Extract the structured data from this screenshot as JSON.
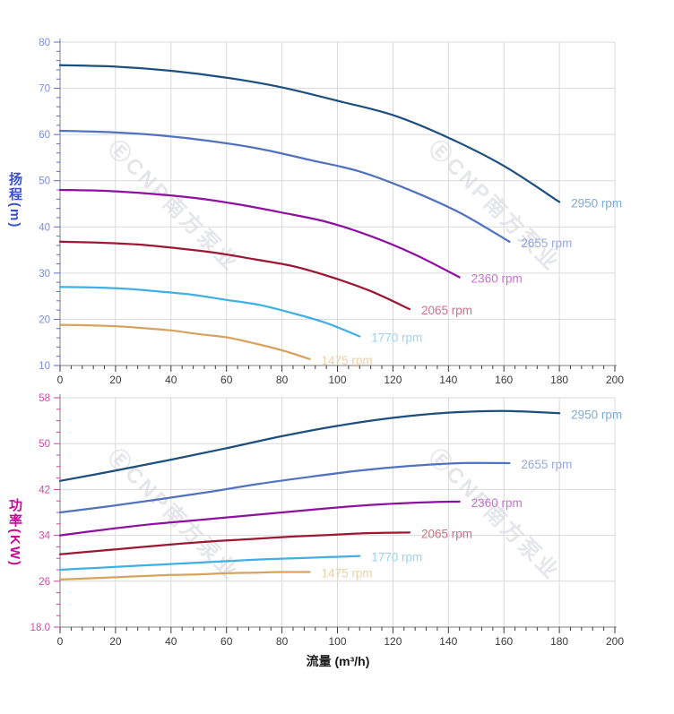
{
  "watermark": {
    "text": "ⒺCNP南方泵业",
    "color": "#d5d7db"
  },
  "chart_data": [
    {
      "id": "head-vs-flow",
      "type": "line",
      "title": "",
      "ylabel": "扬程",
      "ylabel_unit": "(m)",
      "xlabel": "",
      "xlim": [
        0,
        200
      ],
      "ylim": [
        10,
        80
      ],
      "x_ticks": [
        "0",
        "20",
        "40",
        "60",
        "80",
        "100",
        "120",
        "140",
        "160",
        "180",
        "200"
      ],
      "x_minor_step": 4,
      "y_ticks": [
        "10",
        "20",
        "30",
        "40",
        "50",
        "60",
        "70",
        "80"
      ],
      "y_major_step": 10,
      "y_minor_step": 2,
      "grid": true,
      "legend_position": "at-line-end",
      "axis_title_color": "#3a51d4",
      "axis_tick_label_color": "#7e8bd8",
      "axis_tick_color": "#5e6ac8",
      "series": [
        {
          "name": "2950 rpm",
          "color": "#1d4f7f",
          "label_color": "#82aad4",
          "points": [
            [
              0,
              75
            ],
            [
              20,
              74.7
            ],
            [
              40,
              73.8
            ],
            [
              60,
              72.3
            ],
            [
              80,
              70.2
            ],
            [
              100,
              67.3
            ],
            [
              120,
              64.2
            ],
            [
              140,
              59.3
            ],
            [
              160,
              53.2
            ],
            [
              180,
              45.4
            ]
          ]
        },
        {
          "name": "2655 rpm",
          "color": "#5272bf",
          "label_color": "#98a9e0",
          "points": [
            [
              0,
              60.8
            ],
            [
              18,
              60.5
            ],
            [
              36,
              59.8
            ],
            [
              54,
              58.6
            ],
            [
              72,
              56.9
            ],
            [
              90,
              54.5
            ],
            [
              108,
              52
            ],
            [
              126,
              48
            ],
            [
              144,
              43.1
            ],
            [
              162,
              36.8
            ]
          ]
        },
        {
          "name": "2360 rpm",
          "color": "#8f109f",
          "label_color": "#c573cf",
          "points": [
            [
              0,
              48
            ],
            [
              16,
              47.8
            ],
            [
              32,
              47.2
            ],
            [
              48,
              46.3
            ],
            [
              64,
              44.9
            ],
            [
              80,
              43.1
            ],
            [
              96,
              41.1
            ],
            [
              112,
              38
            ],
            [
              128,
              34
            ],
            [
              144,
              29.1
            ]
          ]
        },
        {
          "name": "2065 rpm",
          "color": "#9c1834",
          "label_color": "#ce7088",
          "points": [
            [
              0,
              36.8
            ],
            [
              14,
              36.6
            ],
            [
              28,
              36.2
            ],
            [
              42,
              35.4
            ],
            [
              56,
              34.4
            ],
            [
              70,
              33
            ],
            [
              84,
              31.5
            ],
            [
              98,
              29.1
            ],
            [
              112,
              26.1
            ],
            [
              126,
              22.2
            ]
          ]
        },
        {
          "name": "1770 rpm",
          "color": "#3fafe4",
          "label_color": "#9ed2f0",
          "points": [
            [
              0,
              27
            ],
            [
              12,
              26.9
            ],
            [
              24,
              26.6
            ],
            [
              36,
              26
            ],
            [
              48,
              25.3
            ],
            [
              60,
              24.2
            ],
            [
              72,
              23.1
            ],
            [
              84,
              21.3
            ],
            [
              96,
              19.2
            ],
            [
              108,
              16.3
            ]
          ]
        },
        {
          "name": "1475 rpm",
          "color": "#d8a260",
          "label_color": "#ecd0a4",
          "points": [
            [
              0,
              18.8
            ],
            [
              10,
              18.7
            ],
            [
              20,
              18.5
            ],
            [
              30,
              18.1
            ],
            [
              40,
              17.6
            ],
            [
              50,
              16.8
            ],
            [
              60,
              16.1
            ],
            [
              70,
              14.8
            ],
            [
              80,
              13.3
            ],
            [
              90,
              11.4
            ]
          ]
        }
      ]
    },
    {
      "id": "power-vs-flow",
      "type": "line",
      "title": "",
      "ylabel": "功率",
      "ylabel_unit": "(KW)",
      "xlabel": "流量 (m³/h)",
      "xlim": [
        0,
        200
      ],
      "ylim": [
        18,
        58
      ],
      "x_ticks": [
        "0",
        "20",
        "40",
        "60",
        "80",
        "100",
        "120",
        "140",
        "160",
        "180",
        "200"
      ],
      "x_minor_step": 4,
      "y_ticks": [
        "18.0",
        "26",
        "34",
        "42",
        "50",
        "58"
      ],
      "y_major_step": 8,
      "y_minor_step": 2,
      "grid": true,
      "legend_position": "at-line-end",
      "axis_title_color": "#c7089a",
      "axis_tick_label_color": "#d14ba6",
      "axis_tick_color": "#cf3da0",
      "series": [
        {
          "name": "2950 rpm",
          "color": "#1d4f7f",
          "label_color": "#82aad4",
          "points": [
            [
              0,
              43.5
            ],
            [
              20,
              45.3
            ],
            [
              40,
              47.2
            ],
            [
              60,
              49.2
            ],
            [
              80,
              51.3
            ],
            [
              100,
              53.1
            ],
            [
              120,
              54.5
            ],
            [
              140,
              55.4
            ],
            [
              160,
              55.7
            ],
            [
              180,
              55.3
            ]
          ]
        },
        {
          "name": "2655 rpm",
          "color": "#5272bf",
          "label_color": "#98a9e0",
          "points": [
            [
              0,
              38
            ],
            [
              18,
              39.1
            ],
            [
              36,
              40.3
            ],
            [
              54,
              41.6
            ],
            [
              72,
              43
            ],
            [
              90,
              44.2
            ],
            [
              108,
              45.3
            ],
            [
              126,
              46.1
            ],
            [
              144,
              46.6
            ],
            [
              162,
              46.6
            ]
          ]
        },
        {
          "name": "2360 rpm",
          "color": "#8f109f",
          "label_color": "#c573cf",
          "points": [
            [
              0,
              34
            ],
            [
              16,
              35
            ],
            [
              32,
              35.9
            ],
            [
              48,
              36.6
            ],
            [
              64,
              37.3
            ],
            [
              80,
              38
            ],
            [
              96,
              38.7
            ],
            [
              112,
              39.3
            ],
            [
              128,
              39.7
            ],
            [
              144,
              39.9
            ]
          ]
        },
        {
          "name": "2065 rpm",
          "color": "#9c1834",
          "label_color": "#ce7088",
          "points": [
            [
              0,
              30.7
            ],
            [
              14,
              31.3
            ],
            [
              28,
              31.9
            ],
            [
              42,
              32.5
            ],
            [
              56,
              33
            ],
            [
              70,
              33.4
            ],
            [
              84,
              33.8
            ],
            [
              98,
              34.1
            ],
            [
              112,
              34.4
            ],
            [
              126,
              34.5
            ]
          ]
        },
        {
          "name": "1770 rpm",
          "color": "#3fafe4",
          "label_color": "#9ed2f0",
          "points": [
            [
              0,
              28
            ],
            [
              12,
              28.3
            ],
            [
              24,
              28.6
            ],
            [
              36,
              28.9
            ],
            [
              48,
              29.2
            ],
            [
              60,
              29.5
            ],
            [
              72,
              29.8
            ],
            [
              84,
              30
            ],
            [
              96,
              30.2
            ],
            [
              108,
              30.4
            ]
          ]
        },
        {
          "name": "1475 rpm",
          "color": "#d8a260",
          "label_color": "#ecd0a4",
          "points": [
            [
              0,
              26.3
            ],
            [
              10,
              26.5
            ],
            [
              20,
              26.7
            ],
            [
              30,
              26.9
            ],
            [
              40,
              27.1
            ],
            [
              50,
              27.2
            ],
            [
              60,
              27.4
            ],
            [
              70,
              27.5
            ],
            [
              80,
              27.6
            ],
            [
              90,
              27.6
            ]
          ]
        }
      ]
    }
  ]
}
